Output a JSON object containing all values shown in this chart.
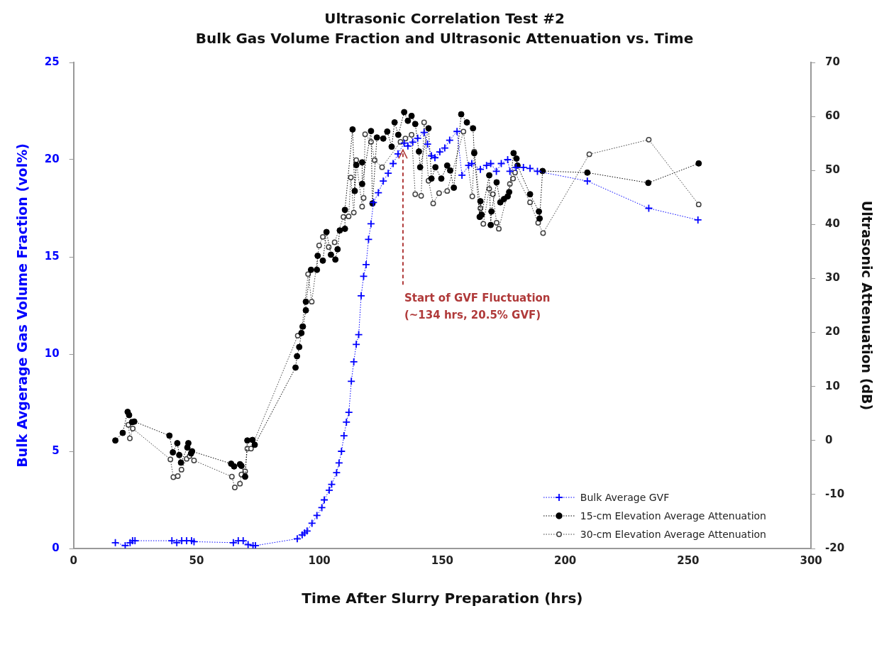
{
  "chart_data": {
    "type": "line",
    "title": "Ultrasonic Correlation Test #2",
    "subtitle": "Bulk Gas Volume Fraction and Ultrasonic Attenuation vs. Time",
    "xlabel": "Time After Slurry Preparation (hrs)",
    "ylabel": "Bulk Avgerage Gas Volume Fraction (vol%)",
    "y2label": "Ultrasonic Attenuation (dB)",
    "xlim": [
      0,
      300
    ],
    "xticks": [
      0,
      50,
      100,
      150,
      200,
      250,
      300
    ],
    "ylim": [
      0,
      25
    ],
    "yticks": [
      0,
      5,
      10,
      15,
      20,
      25
    ],
    "y2lim": [
      -20,
      70
    ],
    "y2ticks": [
      -20,
      -10,
      0,
      10,
      20,
      30,
      40,
      50,
      60,
      70
    ],
    "grid": false,
    "legend": "bottom right",
    "line_style": "dotted",
    "annotations": [
      {
        "text": "Start of GVF Fluctuation\n(~134 hrs, 20.5% GVF)",
        "x": 134,
        "y": 20.5
      }
    ],
    "series": [
      {
        "name": "Bulk Average GVF",
        "color": "#0000ff",
        "marker": "cross",
        "x": [
          17,
          21,
          23,
          24,
          25,
          40,
          42,
          44,
          46,
          48,
          49,
          65,
          67,
          69,
          71,
          73,
          74,
          91,
          93,
          94,
          95,
          97,
          99,
          101,
          102,
          104,
          105,
          107,
          108,
          109,
          110,
          111,
          112,
          113,
          114,
          115,
          116,
          117,
          118,
          119,
          120,
          121,
          122,
          124,
          126,
          128,
          130,
          132,
          134.5,
          136,
          138,
          140,
          142.6,
          144,
          145.6,
          147,
          149,
          151,
          153,
          156,
          158,
          160.7,
          162,
          165.5,
          168,
          169.7,
          172,
          174,
          176.6,
          177.5,
          180,
          183,
          185.7,
          188.7,
          209,
          234,
          254
        ],
        "values": [
          0.3,
          0.15,
          0.3,
          0.4,
          0.4,
          0.4,
          0.3,
          0.4,
          0.4,
          0.4,
          0.35,
          0.3,
          0.4,
          0.4,
          0.2,
          0.15,
          0.15,
          0.5,
          0.7,
          0.8,
          0.9,
          1.3,
          1.7,
          2.1,
          2.5,
          3.0,
          3.3,
          3.9,
          4.4,
          5.0,
          5.8,
          6.5,
          7.0,
          8.6,
          9.6,
          10.5,
          11.0,
          13.0,
          14.0,
          14.6,
          15.9,
          16.7,
          17.8,
          18.3,
          18.9,
          19.3,
          19.8,
          20.3,
          20.85,
          20.7,
          20.9,
          21.1,
          21.4,
          20.8,
          20.2,
          20.1,
          20.4,
          20.6,
          21.0,
          21.45,
          19.2,
          19.7,
          19.8,
          19.5,
          19.7,
          19.8,
          19.4,
          19.8,
          20.0,
          19.4,
          19.6,
          19.6,
          19.55,
          19.4,
          18.9,
          17.5,
          16.9
        ]
      },
      {
        "name": "15-cm Elevation Average Attenuation",
        "color": "#000000",
        "marker": "circle",
        "axis": "y2",
        "x": [
          17,
          20,
          22,
          22.6,
          23.8,
          24.7,
          39,
          40.4,
          42.2,
          43,
          43.7,
          46.3,
          46.7,
          47.8,
          48.2,
          64.1,
          65.3,
          67.7,
          68.3,
          69.8,
          70.7,
          72.8,
          73.7,
          90.3,
          90.9,
          91.8,
          92.7,
          93.3,
          94.5,
          94.5,
          96.6,
          99,
          99.3,
          101.4,
          102.9,
          104.7,
          106.5,
          107.4,
          108.3,
          110.4,
          110.4,
          113.5,
          114.4,
          115,
          117.4,
          117.4,
          121,
          121.6,
          123.4,
          126,
          127.6,
          129.4,
          130.6,
          132.1,
          134.5,
          136,
          137.5,
          139,
          140.5,
          141,
          144.4,
          145.6,
          147.2,
          149.6,
          152,
          153.2,
          154.7,
          157.7,
          160,
          162.5,
          163,
          165.2,
          165.5,
          166,
          169.1,
          169.7,
          170,
          172.1,
          173.6,
          175.1,
          176.6,
          177.2,
          179,
          180.2,
          180.6,
          185.7,
          189.3,
          189.6,
          190.8,
          209,
          233.8,
          254.3
        ],
        "values": [
          0.0,
          1.4,
          5.3,
          4.7,
          3.4,
          3.5,
          0.9,
          -2.2,
          -0.5,
          -2.7,
          -4.1,
          -1.3,
          -0.5,
          -2.4,
          -2.0,
          -4.3,
          -4.8,
          -4.4,
          -4.7,
          -6.7,
          0.0,
          0.1,
          -0.8,
          13.5,
          15.6,
          17.3,
          19.9,
          21.1,
          24.1,
          25.7,
          31.6,
          31.6,
          34.2,
          33.3,
          38.6,
          34.4,
          33.5,
          35.4,
          38.9,
          39.2,
          42.7,
          57.6,
          46.2,
          51.0,
          51.5,
          47.5,
          57.3,
          43.9,
          56.1,
          55.9,
          57.2,
          54.4,
          58.9,
          56.6,
          60.8,
          59.2,
          60.1,
          58.6,
          53.5,
          50.6,
          57.8,
          48.5,
          50.6,
          48.5,
          50.9,
          50.0,
          46.8,
          60.4,
          58.9,
          57.8,
          53.2,
          41.4,
          44.3,
          41.8,
          49.1,
          39.9,
          42.4,
          47.8,
          44.1,
          44.7,
          45.2,
          46.0,
          53.2,
          52.2,
          50.9,
          45.6,
          42.4,
          41.1,
          49.9,
          49.6,
          47.7,
          51.3
        ]
      },
      {
        "name": "30-cm Elevation Average Attenuation",
        "color": "#404040",
        "marker": "circle",
        "axis": "y2",
        "x": [
          22.3,
          22.9,
          24.1,
          39.4,
          40.6,
          42.4,
          43.9,
          46,
          47.2,
          49,
          64.4,
          65.6,
          67.7,
          68.3,
          69.8,
          70.7,
          72.2,
          91.2,
          93,
          95.4,
          96.9,
          99.9,
          101.4,
          103.8,
          106.2,
          109.8,
          111.9,
          112.8,
          114,
          115,
          117.4,
          118,
          118.6,
          121,
          122.5,
          125.5,
          133,
          135,
          137.5,
          139,
          141.4,
          142.6,
          144.4,
          146.3,
          148.7,
          152,
          158.6,
          162.2,
          163,
          165.5,
          166.7,
          169.1,
          170.6,
          172.1,
          173,
          177.5,
          178.8,
          179.6,
          185.7,
          189,
          191,
          209.8,
          234,
          254.3
        ],
        "values": [
          2.9,
          0.4,
          2.2,
          -3.5,
          -6.8,
          -6.6,
          -5.4,
          -3.4,
          -2.9,
          -3.7,
          -6.7,
          -8.7,
          -8.0,
          -6.3,
          -5.7,
          -1.5,
          -1.5,
          19.4,
          21.1,
          30.8,
          25.7,
          36.1,
          37.7,
          35.8,
          36.7,
          41.4,
          41.5,
          48.7,
          42.2,
          51.9,
          43.3,
          44.9,
          56.7,
          55.3,
          51.9,
          50.6,
          55.3,
          55.9,
          56.6,
          45.6,
          45.3,
          58.9,
          48.1,
          43.9,
          45.8,
          46.2,
          57.2,
          45.2,
          53.5,
          43.0,
          40.1,
          46.6,
          45.6,
          40.3,
          39.2,
          47.5,
          48.5,
          49.6,
          44.1,
          40.3,
          38.4,
          53.0,
          55.7,
          43.7
        ]
      }
    ]
  }
}
